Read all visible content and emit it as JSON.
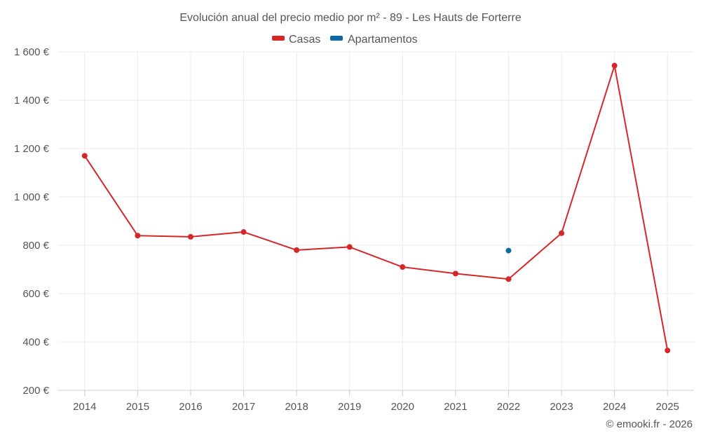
{
  "chart_data": {
    "type": "line",
    "title": "Evolución anual del precio medio por m² - 89 - Les Hauts de Forterre",
    "categories": [
      "2014",
      "2015",
      "2016",
      "2017",
      "2018",
      "2019",
      "2020",
      "2021",
      "2022",
      "2023",
      "2024",
      "2025"
    ],
    "y_ticks": [
      200,
      400,
      600,
      800,
      1000,
      1200,
      1400,
      1600
    ],
    "y_tick_labels": [
      "200 €",
      "400 €",
      "600 €",
      "800 €",
      "1 000 €",
      "1 200 €",
      "1 400 €",
      "1 600 €"
    ],
    "ylim": [
      200,
      1600
    ],
    "grid": true,
    "legend_position": "top-center",
    "series": [
      {
        "name": "Casas",
        "color": "#d62728",
        "values": [
          1170,
          840,
          835,
          855,
          780,
          793,
          710,
          683,
          660,
          850,
          1543,
          365
        ]
      },
      {
        "name": "Apartamentos",
        "color": "#0b6aa1",
        "values": [
          null,
          null,
          null,
          null,
          null,
          null,
          null,
          null,
          778,
          null,
          null,
          null
        ]
      }
    ],
    "credit": "© emooki.fr - 2026"
  }
}
